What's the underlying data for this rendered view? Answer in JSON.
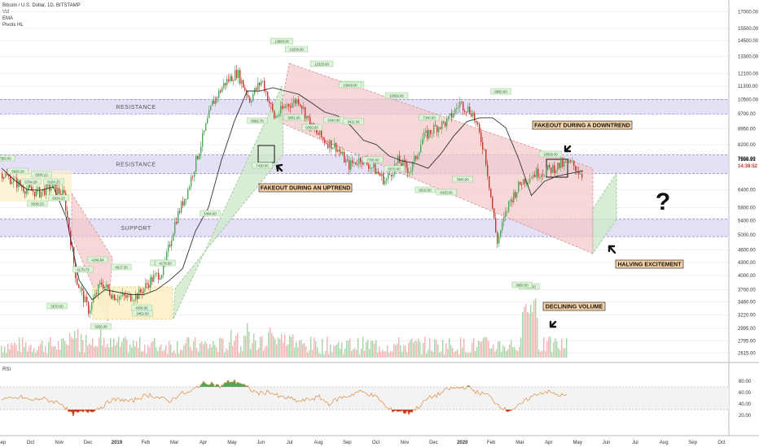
{
  "legend": {
    "symbol": "Bitcoin / U.S. Dollar, 1D, BITSTAMP",
    "vol": "Vol",
    "ema": "EMA",
    "pivots": "Pivots HL"
  },
  "rsi_pane": {
    "label": "RSI"
  },
  "colors": {
    "candle_up": "#53a557",
    "candle_down": "#c0392b",
    "ema": "#333333",
    "zone_fill": "#dcd6f2",
    "channel_fill": "#f4c7c7",
    "up_fill": "#cfe8cc",
    "accum_fill": "#fbefc6",
    "rsi_line": "#e08a3c",
    "vol_up": "#a7d3a5",
    "vol_down": "#f1b3b3",
    "callout_bg": "#f5d2a8"
  },
  "zones": [
    {
      "label": "RESISTANCE",
      "low": 9700,
      "high": 10500
    },
    {
      "label": "RESISTANCE",
      "low": 7000,
      "high": 7750
    },
    {
      "label": "SUPPORT",
      "low": 4950,
      "high": 5450
    }
  ],
  "callouts": [
    {
      "id": "fakeout-uptrend",
      "text": "FAKEOUT DURING AN UPTREND"
    },
    {
      "id": "fakeout-downtrend",
      "text": "FAKEOUT DURING A DOWNTREND"
    },
    {
      "id": "halving",
      "text": "HALVING EXCITEMENT"
    },
    {
      "id": "volume",
      "text": "DECLINING VOLUME"
    }
  ],
  "question_mark": "?",
  "chart_data": {
    "type": "line",
    "title": "Bitcoin / U.S. Dollar, 1D, BITSTAMP",
    "y_scale": "log",
    "price_axis_ticks": [
      "17000.00",
      "15500.00",
      "14500.00",
      "13300.00",
      "12100.00",
      "11300.00",
      "10500.00",
      "9700.00",
      "8950.00",
      "8200.00",
      "7600.00",
      "6400.00",
      "5800.00",
      "5400.00",
      "5000.00",
      "4600.00",
      "4300.00",
      "4000.00",
      "3700.00",
      "3460.00",
      "3220.00",
      "2995.00",
      "2795.00",
      "2615.00"
    ],
    "price_markers": [
      {
        "value": 7556.91,
        "label": "7556.91"
      },
      {
        "value": 7300,
        "label": "14:38:52"
      }
    ],
    "time_axis_labels": [
      "Sep",
      "Oct",
      "Nov",
      "Dec",
      "2019",
      "Feb",
      "Mar",
      "Apr",
      "May",
      "Jun",
      "Jul",
      "Aug",
      "Sep",
      "Oct",
      "Nov",
      "Dec",
      "2020",
      "Feb",
      "Mar",
      "Apr",
      "May",
      "Jun",
      "Jul",
      "Aug",
      "Sep",
      "Oct"
    ],
    "series": [
      {
        "name": "EMA",
        "values": [
          7200,
          6750,
          6400,
          6380,
          6500,
          5500,
          3900,
          3500,
          3700,
          3650,
          3600,
          3600,
          3700,
          3900,
          4150,
          5100,
          5800,
          7500,
          9300,
          11000,
          11000,
          11200,
          11000,
          10800,
          10300,
          9800,
          9600,
          9100,
          8400,
          8200,
          7700,
          7500,
          7400,
          7200,
          7800,
          8600,
          9300,
          9500,
          9500,
          9000,
          7600,
          6200,
          6700,
          6900,
          7000,
          7100
        ]
      },
      {
        "name": "Price",
        "values": [
          7000,
          6700,
          6400,
          6300,
          6500,
          6200,
          3900,
          3300,
          3850,
          3580,
          3550,
          3600,
          3900,
          4100,
          5400,
          6400,
          8100,
          10300,
          11500,
          12200,
          10500,
          11700,
          9500,
          10200,
          10500,
          9000,
          8400,
          8100,
          7300,
          7600,
          7200,
          6700,
          7500,
          7100,
          8500,
          9000,
          9300,
          10300,
          9800,
          7900,
          4800,
          6000,
          6700,
          7000,
          7100,
          7300,
          7400,
          6900
        ]
      }
    ],
    "pivot_labels": [
      "7393.00",
      "6826.29",
      "6784.28",
      "6536.12",
      "6536.23",
      "6164.25",
      "6034.23",
      "4296.84",
      "4179.73",
      "4017.30",
      "3570.00",
      "3256.00",
      "3452.00",
      "3393.75",
      "4056.95",
      "4178.00",
      "5464.00",
      "8082.70",
      "7430.00",
      "13885.00",
      "13200.00",
      "12325.00",
      "11950.00",
      "10949.00",
      "9350.00",
      "9061.00",
      "9340.00",
      "9411.00",
      "7700.00",
      "10350.00",
      "8070.00",
      "7340.00",
      "6515.00",
      "6425.00",
      "7800.00",
      "6850.00",
      "10500.00",
      "7480.00",
      "3850.00"
    ],
    "rsi": {
      "ticks": [
        "80.00",
        "60.00",
        "40.00",
        "20.00"
      ],
      "upper": 70,
      "lower": 30,
      "values": [
        50,
        48,
        52,
        46,
        50,
        45,
        42,
        22,
        25,
        28,
        34,
        46,
        48,
        44,
        52,
        56,
        50,
        45,
        58,
        60,
        74,
        78,
        70,
        80,
        78,
        66,
        58,
        62,
        52,
        50,
        44,
        48,
        52,
        40,
        50,
        54,
        62,
        58,
        50,
        30,
        28,
        24,
        34,
        50,
        56,
        66,
        68,
        70,
        60,
        56,
        40,
        28,
        34,
        48,
        58,
        62,
        56,
        54
      ]
    }
  }
}
